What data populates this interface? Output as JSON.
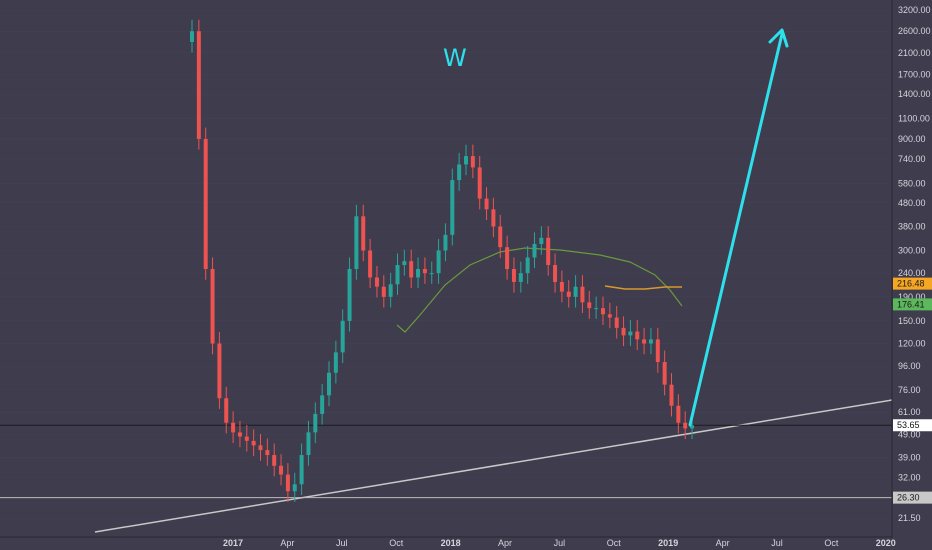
{
  "chart_data": {
    "type": "candlestick",
    "title": "",
    "annotation": "W",
    "y_scale": "log",
    "ylim": [
      19.5,
      3400
    ],
    "y_ticks": [
      "3200.00",
      "2600.00",
      "2100.00",
      "1700.00",
      "1400.00",
      "1100.00",
      "900.00",
      "740.00",
      "580.00",
      "480.00",
      "380.00",
      "300.00",
      "240.00",
      "190.00",
      "150.00",
      "120.00",
      "96.00",
      "76.00",
      "61.00",
      "49.00",
      "39.00",
      "32.00",
      "21.50"
    ],
    "x_ticks": [
      "2017",
      "Apr",
      "Jul",
      "Oct",
      "2018",
      "Apr",
      "Jul",
      "Oct",
      "2019",
      "Apr",
      "Jul",
      "Oct",
      "2020"
    ],
    "price_tags": [
      {
        "label": "216.48",
        "value": 216.48,
        "color": "#f5a623"
      },
      {
        "label": "176.41",
        "value": 176.41,
        "color": "#5cb85c"
      },
      {
        "label": "53.65",
        "value": 53.65,
        "color": "#ffffff"
      },
      {
        "label": "26.30",
        "value": 26.3,
        "color": "#c8c8c8"
      }
    ],
    "horizontal_lines": [
      53.65,
      26.3
    ],
    "bullish_color": "#26a69a",
    "bearish_color": "#ef5350",
    "moving_average_green": "#6a9a3c",
    "moving_average_orange": "#d99a2b",
    "arrow_color": "#2de0ec",
    "trendline_color": "#c8c8c8",
    "price_series": [
      2600,
      900,
      250,
      120,
      70,
      55,
      50,
      48,
      46,
      44,
      42,
      40,
      36,
      33,
      28,
      30,
      40,
      50,
      60,
      72,
      90,
      110,
      150,
      250,
      420,
      300,
      230,
      210,
      190,
      215,
      260,
      270,
      230,
      250,
      240,
      240,
      300,
      350,
      600,
      700,
      760,
      680,
      500,
      450,
      380,
      310,
      250,
      220,
      240,
      280,
      320,
      340,
      260,
      220,
      200,
      190,
      210,
      180,
      170,
      170,
      160,
      155,
      140,
      130,
      135,
      125,
      120,
      125,
      100,
      80,
      65,
      55,
      52,
      53.65
    ]
  }
}
